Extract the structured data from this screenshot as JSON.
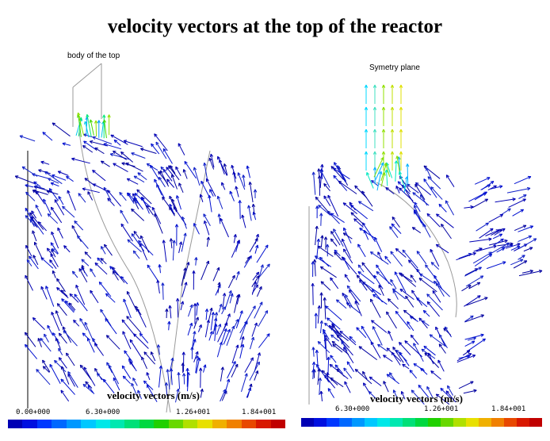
{
  "title": "velocity vectors at the top of the reactor",
  "left_panel": {
    "annotation": "body of the top",
    "legend_title": "velocity vectors (m/s)",
    "ticks": [
      "0.00+000",
      "6.30+000",
      "1.26+001",
      "1.84+001"
    ]
  },
  "right_panel": {
    "annotation": "Symetry plane",
    "legend_title": "velocity vectors (m/s)",
    "ticks": [
      "6.30+000",
      "1.26+001",
      "1.84+001"
    ]
  },
  "colormap": [
    "#0000b4",
    "#0010e0",
    "#0038ff",
    "#0068ff",
    "#0098ff",
    "#00c8ff",
    "#00e8e8",
    "#00e8b0",
    "#00e078",
    "#00d840",
    "#20d000",
    "#68d800",
    "#b0e000",
    "#e8e000",
    "#f0b000",
    "#f08000",
    "#e84800",
    "#d81800",
    "#c00000"
  ]
}
